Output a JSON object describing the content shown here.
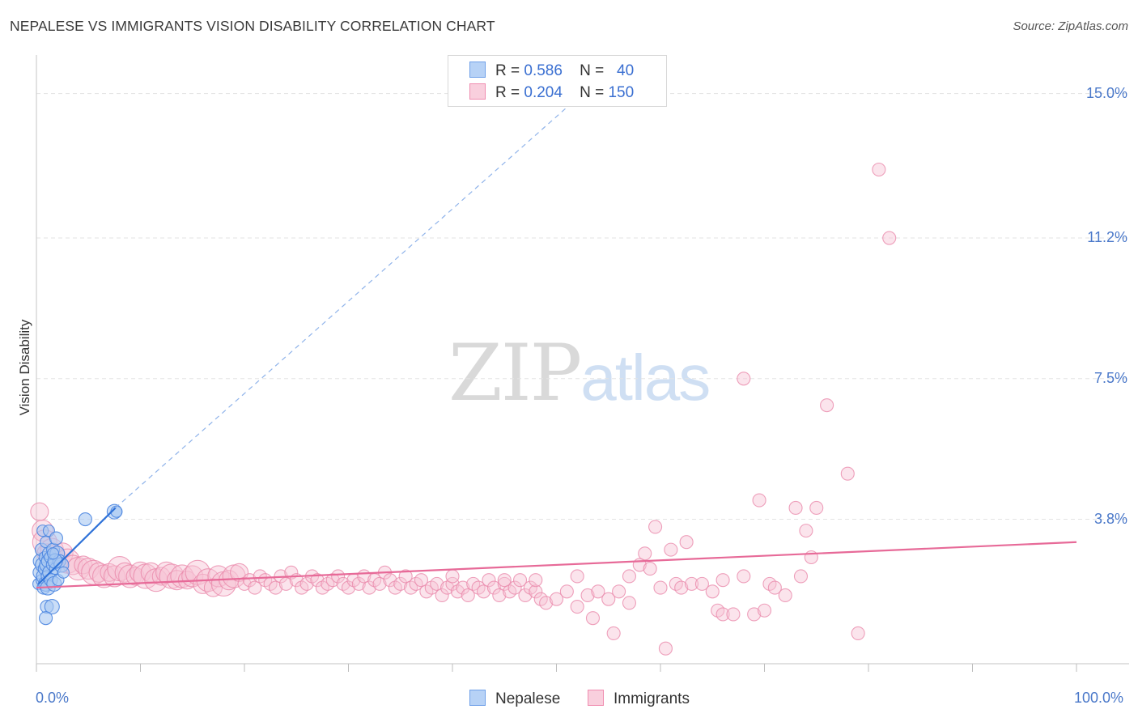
{
  "header": {
    "title": "NEPALESE VS IMMIGRANTS VISION DISABILITY CORRELATION CHART",
    "source": "Source: ZipAtlas.com"
  },
  "watermark": {
    "zip": "ZIP",
    "atlas": "atlas"
  },
  "legend": {
    "rows": [
      {
        "r_label": "R =",
        "r_value": "0.586",
        "n_label": "N =",
        "n_value": "40",
        "color": "#6fa0e8"
      },
      {
        "r_label": "R =",
        "r_value": "0.204",
        "n_label": "N =",
        "n_value": "150",
        "color": "#f08db0"
      }
    ]
  },
  "bottom_legend": [
    "Nepalese",
    "Immigrants"
  ],
  "colors": {
    "nepalese_fill": "#a9c8f2",
    "nepalese_stroke": "#4c86e0",
    "nepalese_line": "#2f72d8",
    "immigrants_fill": "#f6c3d4",
    "immigrants_stroke": "#ea8aab",
    "immigrants_line": "#e76a98",
    "axis_text": "#4a78c9",
    "grid": "#e3e3e3"
  },
  "chart_data": {
    "type": "scatter",
    "title": "NEPALESE VS IMMIGRANTS VISION DISABILITY CORRELATION CHART",
    "xlabel": "",
    "ylabel": "Vision Disability",
    "xlim": [
      0,
      100
    ],
    "ylim": [
      0,
      15.8
    ],
    "x_tick_labels": [
      "0.0%",
      "100.0%"
    ],
    "y_ticks": [
      3.8,
      7.5,
      11.2,
      15.0
    ],
    "y_tick_labels": [
      "3.8%",
      "7.5%",
      "11.2%",
      "15.0%"
    ],
    "grid": true,
    "legend_position": "top-center",
    "series": [
      {
        "name": "Nepalese",
        "r": 0.586,
        "n": 40,
        "trend": {
          "x": [
            0.2,
            7.6
          ],
          "y": [
            2.1,
            4.1
          ],
          "extended_to": [
            52.5,
            15.0
          ]
        },
        "points": [
          [
            0.2,
            2.1
          ],
          [
            0.3,
            2.4
          ],
          [
            0.4,
            2.7
          ],
          [
            0.5,
            2.2
          ],
          [
            0.5,
            3.0
          ],
          [
            0.6,
            2.6
          ],
          [
            0.6,
            3.5
          ],
          [
            0.7,
            2.0
          ],
          [
            0.7,
            2.3
          ],
          [
            0.8,
            2.8
          ],
          [
            0.8,
            2.5
          ],
          [
            0.9,
            2.1
          ],
          [
            0.9,
            3.2
          ],
          [
            1.0,
            1.5
          ],
          [
            1.0,
            2.6
          ],
          [
            1.0,
            2.3
          ],
          [
            1.1,
            2.7
          ],
          [
            1.1,
            2.0
          ],
          [
            1.2,
            3.5
          ],
          [
            1.2,
            2.9
          ],
          [
            1.3,
            2.4
          ],
          [
            1.3,
            2.8
          ],
          [
            1.4,
            2.2
          ],
          [
            1.5,
            1.5
          ],
          [
            1.5,
            2.6
          ],
          [
            1.6,
            3.0
          ],
          [
            1.7,
            2.1
          ],
          [
            1.8,
            2.5
          ],
          [
            1.9,
            3.3
          ],
          [
            2.0,
            2.9
          ],
          [
            2.1,
            2.2
          ],
          [
            2.2,
            2.7
          ],
          [
            2.4,
            2.6
          ],
          [
            2.6,
            2.4
          ],
          [
            0.9,
            1.2
          ],
          [
            1.8,
            2.7
          ],
          [
            1.6,
            2.9
          ],
          [
            4.7,
            3.8
          ],
          [
            7.5,
            4.0
          ],
          [
            7.7,
            4.0
          ]
        ]
      },
      {
        "name": "Immigrants",
        "r": 0.204,
        "n": 150,
        "trend": {
          "x": [
            0,
            100
          ],
          "y": [
            2.0,
            3.2
          ]
        },
        "points": [
          [
            0.3,
            4.0
          ],
          [
            0.6,
            3.5
          ],
          [
            0.8,
            3.2
          ],
          [
            1.0,
            2.9
          ],
          [
            1.5,
            3.0
          ],
          [
            2.0,
            2.8
          ],
          [
            2.5,
            2.9
          ],
          [
            3.0,
            2.7
          ],
          [
            3.5,
            2.6
          ],
          [
            4.0,
            2.5
          ],
          [
            4.5,
            2.6
          ],
          [
            5.0,
            2.5
          ],
          [
            5.5,
            2.4
          ],
          [
            6.0,
            2.4
          ],
          [
            6.5,
            2.3
          ],
          [
            7.0,
            2.4
          ],
          [
            7.5,
            2.3
          ],
          [
            8.0,
            2.5
          ],
          [
            8.5,
            2.4
          ],
          [
            9.0,
            2.3
          ],
          [
            9.5,
            2.3
          ],
          [
            10.0,
            2.4
          ],
          [
            10.5,
            2.3
          ],
          [
            11.0,
            2.4
          ],
          [
            11.5,
            2.2
          ],
          [
            12.0,
            2.3
          ],
          [
            12.5,
            2.4
          ],
          [
            13.0,
            2.3
          ],
          [
            13.5,
            2.2
          ],
          [
            14.0,
            2.3
          ],
          [
            14.5,
            2.2
          ],
          [
            15.0,
            2.3
          ],
          [
            15.5,
            2.4
          ],
          [
            16.0,
            2.1
          ],
          [
            16.5,
            2.2
          ],
          [
            17.0,
            2.0
          ],
          [
            17.5,
            2.3
          ],
          [
            18.0,
            2.1
          ],
          [
            18.5,
            2.2
          ],
          [
            19.0,
            2.3
          ],
          [
            19.5,
            2.4
          ],
          [
            20.0,
            2.1
          ],
          [
            20.5,
            2.2
          ],
          [
            21.0,
            2.0
          ],
          [
            21.5,
            2.3
          ],
          [
            22.0,
            2.2
          ],
          [
            22.5,
            2.1
          ],
          [
            23.0,
            2.0
          ],
          [
            23.5,
            2.3
          ],
          [
            24.0,
            2.1
          ],
          [
            24.5,
            2.4
          ],
          [
            25.0,
            2.2
          ],
          [
            25.5,
            2.0
          ],
          [
            26.0,
            2.1
          ],
          [
            26.5,
            2.3
          ],
          [
            27.0,
            2.2
          ],
          [
            27.5,
            2.0
          ],
          [
            28.0,
            2.1
          ],
          [
            28.5,
            2.2
          ],
          [
            29.0,
            2.3
          ],
          [
            29.5,
            2.1
          ],
          [
            30.0,
            2.0
          ],
          [
            30.5,
            2.2
          ],
          [
            31.0,
            2.1
          ],
          [
            31.5,
            2.3
          ],
          [
            32.0,
            2.0
          ],
          [
            32.5,
            2.2
          ],
          [
            33.0,
            2.1
          ],
          [
            33.5,
            2.4
          ],
          [
            34.0,
            2.2
          ],
          [
            34.5,
            2.0
          ],
          [
            35.0,
            2.1
          ],
          [
            35.5,
            2.3
          ],
          [
            36.0,
            2.0
          ],
          [
            36.5,
            2.1
          ],
          [
            37.0,
            2.2
          ],
          [
            37.5,
            1.9
          ],
          [
            38.0,
            2.0
          ],
          [
            38.5,
            2.1
          ],
          [
            39.0,
            1.8
          ],
          [
            39.5,
            2.0
          ],
          [
            40.0,
            2.1
          ],
          [
            40.5,
            1.9
          ],
          [
            41.0,
            2.0
          ],
          [
            41.5,
            1.8
          ],
          [
            42.0,
            2.1
          ],
          [
            42.5,
            2.0
          ],
          [
            43.0,
            1.9
          ],
          [
            43.5,
            2.2
          ],
          [
            44.0,
            2.0
          ],
          [
            44.5,
            1.8
          ],
          [
            45.0,
            2.1
          ],
          [
            45.5,
            1.9
          ],
          [
            46.0,
            2.0
          ],
          [
            46.5,
            2.2
          ],
          [
            47.0,
            1.8
          ],
          [
            47.5,
            2.0
          ],
          [
            48.0,
            1.9
          ],
          [
            48.5,
            1.7
          ],
          [
            49.0,
            1.6
          ],
          [
            50.0,
            1.7
          ],
          [
            51.0,
            1.9
          ],
          [
            52.0,
            1.5
          ],
          [
            53.0,
            1.8
          ],
          [
            53.5,
            1.2
          ],
          [
            54.0,
            1.9
          ],
          [
            55.0,
            1.7
          ],
          [
            55.5,
            0.8
          ],
          [
            56.0,
            1.9
          ],
          [
            57.0,
            1.6
          ],
          [
            58.0,
            2.6
          ],
          [
            58.5,
            2.9
          ],
          [
            59.0,
            2.5
          ],
          [
            59.5,
            3.6
          ],
          [
            60.0,
            2.0
          ],
          [
            60.5,
            0.4
          ],
          [
            61.0,
            3.0
          ],
          [
            61.5,
            2.1
          ],
          [
            62.0,
            2.0
          ],
          [
            62.5,
            3.2
          ],
          [
            63.0,
            2.1
          ],
          [
            64.0,
            2.1
          ],
          [
            65.0,
            1.9
          ],
          [
            65.5,
            1.4
          ],
          [
            66.0,
            1.3
          ],
          [
            67.0,
            1.3
          ],
          [
            68.0,
            2.3
          ],
          [
            69.0,
            1.3
          ],
          [
            69.5,
            4.3
          ],
          [
            70.0,
            1.4
          ],
          [
            70.5,
            2.1
          ],
          [
            71.0,
            2.0
          ],
          [
            72.0,
            1.8
          ],
          [
            73.0,
            4.1
          ],
          [
            73.5,
            2.3
          ],
          [
            74.0,
            3.5
          ],
          [
            74.5,
            2.8
          ],
          [
            75.0,
            4.1
          ],
          [
            76.0,
            6.8
          ],
          [
            78.0,
            5.0
          ],
          [
            79.0,
            0.8
          ],
          [
            81.0,
            13.0
          ],
          [
            82.0,
            11.2
          ],
          [
            68.0,
            7.5
          ],
          [
            40.0,
            2.3
          ],
          [
            45.0,
            2.2
          ],
          [
            48.0,
            2.2
          ],
          [
            52.0,
            2.3
          ],
          [
            57.0,
            2.3
          ],
          [
            66.0,
            2.2
          ]
        ]
      }
    ]
  }
}
